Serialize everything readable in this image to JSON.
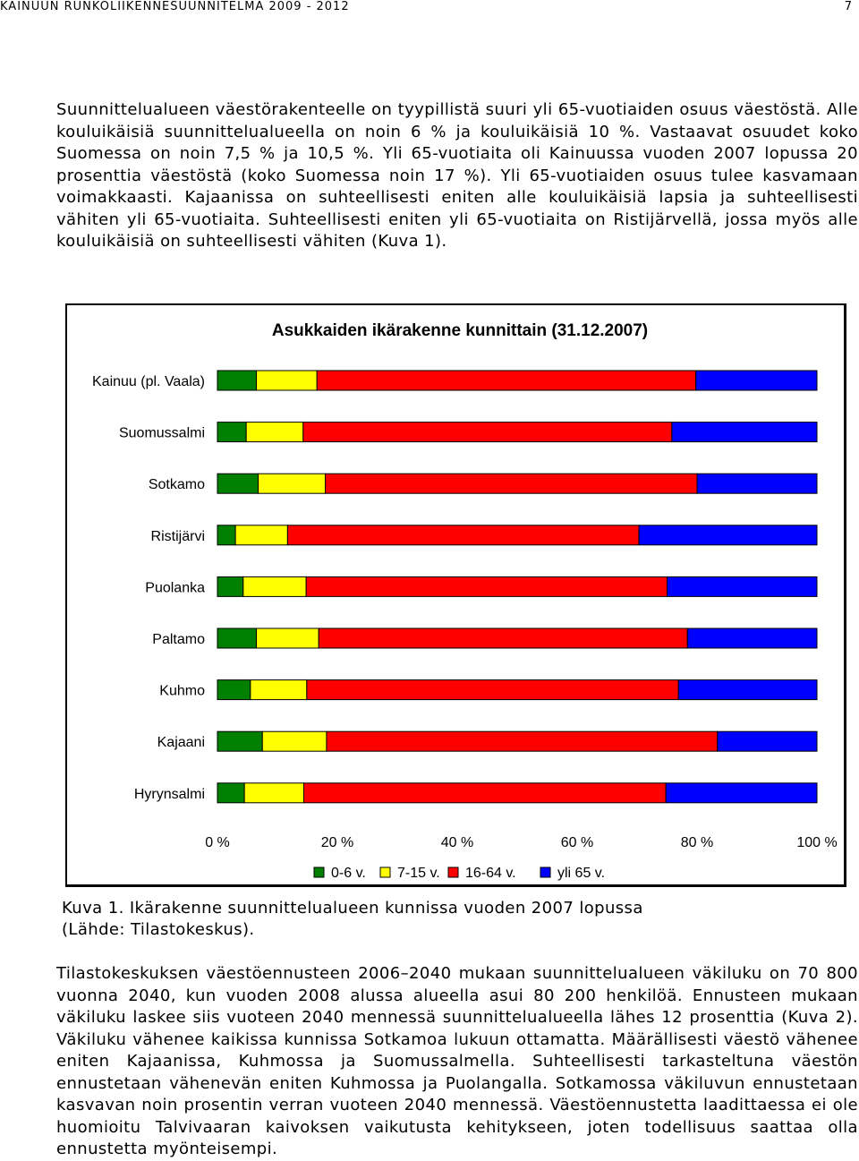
{
  "header": {
    "running_title": "KAINUUN RUNKOLIIKENNESUUNNITELMA 2009 - 2012",
    "page_number": "7"
  },
  "body": {
    "paragraph1": "Suunnittelualueen väestörakenteelle on tyypillistä suuri yli 65-vuotiaiden osuus väestöstä. Alle kouluikäisiä suunnittelualueella on noin 6 % ja kouluikäisiä 10 %. Vastaavat osuudet koko Suomessa on noin 7,5 % ja 10,5 %. Yli 65-vuotiaita oli Kainuussa vuoden 2007 lopussa 20 prosenttia väestöstä (koko Suomessa noin 17 %). Yli 65-vuotiaiden osuus tulee kasvamaan voimakkaasti. Kajaanissa on suhteellisesti eniten alle kouluikäisiä lapsia ja suhteellisesti vähiten yli 65-vuotiaita. Suhteellisesti eniten yli 65-vuotiaita on Ristijärvellä, jossa myös alle kouluikäisiä on suhteellisesti vähiten (Kuva 1).",
    "caption_line1": "Kuva 1. Ikärakenne suunnittelualueen kunnissa vuoden 2007 lopussa",
    "caption_line2": "(Lähde: Tilastokeskus).",
    "paragraph2": "Tilastokeskuksen väestöennusteen 2006–2040 mukaan suunnittelualueen väkiluku on 70 800 vuonna 2040, kun vuoden 2008 alussa alueella asui 80 200 henkilöä. Ennusteen mukaan väkiluku laskee siis vuoteen 2040 mennessä suunnittelualueella lähes 12 prosenttia (Kuva 2). Väkiluku vähenee kaikissa kunnissa Sotkamoa lukuun ottamatta. Määrällisesti väestö vähenee eniten Kajaanissa, Kuhmossa ja Suomussalmella. Suhteellisesti tarkasteltuna väestön ennustetaan vähenevän eniten Kuhmossa ja Puolangalla. Sotkamossa väkiluvun ennustetaan kasvavan noin prosentin verran vuoteen 2040 mennessä. Väestöennustetta laadittaessa ei ole huomioitu Talvivaaran kaivoksen vaikutusta kehitykseen, joten todellisuus saattaa olla ennustetta myönteisempi."
  },
  "chart_data": {
    "type": "bar",
    "orientation": "horizontal",
    "stacked": "percent",
    "title": "Asukkaiden ikärakenne kunnittain (31.12.2007)",
    "categories": [
      "Kainuu (pl. Vaala)",
      "Suomussalmi",
      "Sotkamo",
      "Ristijärvi",
      "Puolanka",
      "Paltamo",
      "Kuhmo",
      "Kajaani",
      "Hyrynsalmi"
    ],
    "series": [
      {
        "name": "0-6 v.",
        "color": "#008000",
        "values": [
          6.5,
          4.8,
          6.8,
          3.0,
          4.3,
          6.5,
          5.5,
          7.5,
          4.5
        ]
      },
      {
        "name": "7-15 v.",
        "color": "#FFFF00",
        "values": [
          10.1,
          9.5,
          11.2,
          8.7,
          10.5,
          10.4,
          9.4,
          10.7,
          9.9
        ]
      },
      {
        "name": "16-64 v.",
        "color": "#FF0000",
        "values": [
          63.2,
          61.5,
          62.0,
          58.6,
          60.2,
          61.5,
          62.0,
          65.2,
          60.4
        ]
      },
      {
        "name": "yli 65 v.",
        "color": "#0000FF",
        "values": [
          20.2,
          24.2,
          20.0,
          29.7,
          25.0,
          21.6,
          23.1,
          16.6,
          25.2
        ]
      }
    ],
    "xlim": [
      0,
      100
    ],
    "xticks": [
      "0 %",
      "20 %",
      "40 %",
      "60 %",
      "80 %",
      "100 %"
    ],
    "legend_position": "bottom",
    "grid": false
  }
}
